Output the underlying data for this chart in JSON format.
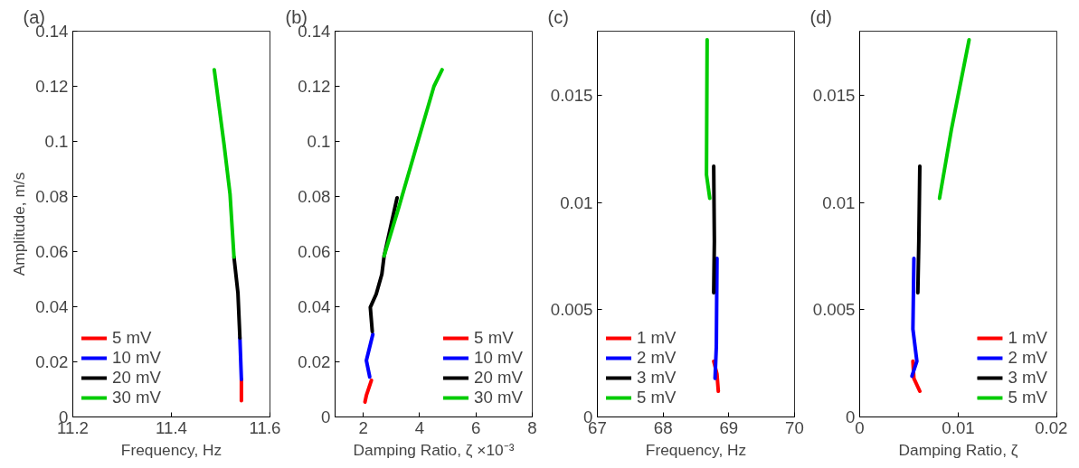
{
  "chart_data": [
    {
      "type": "line",
      "title": "(a)",
      "xlabel": "Frequency, Hz",
      "ylabel": "Amplitude, m/s",
      "xlim": [
        11.2,
        11.6
      ],
      "xticks": [
        11.2,
        11.4,
        11.6
      ],
      "ylim": [
        0,
        0.14
      ],
      "yticks": [
        0,
        0.02,
        0.04,
        0.06,
        0.08,
        0.1,
        0.12,
        0.14
      ],
      "legend": "bottom left",
      "grid": false,
      "series": [
        {
          "name": "5 mV",
          "color": "#ff0000",
          "x": [
            11.542,
            11.542
          ],
          "values": [
            0.0059,
            0.0136
          ]
        },
        {
          "name": "10 mV",
          "color": "#0000ff",
          "x": [
            11.542,
            11.539
          ],
          "values": [
            0.0136,
            0.0287
          ]
        },
        {
          "name": "20 mV",
          "color": "#000000",
          "x": [
            11.539,
            11.535,
            11.527
          ],
          "values": [
            0.0287,
            0.045,
            0.058
          ]
        },
        {
          "name": "30 mV",
          "color": "#00cc00",
          "x": [
            11.527,
            11.519,
            11.507,
            11.487
          ],
          "values": [
            0.058,
            0.0808,
            0.0987,
            0.126
          ]
        }
      ]
    },
    {
      "type": "line",
      "title": "(b)",
      "xlabel": "Damping Ratio, ζ ×10⁻³",
      "xlim": [
        1,
        8
      ],
      "xticks": [
        2,
        4,
        6,
        8
      ],
      "ylim": [
        0,
        0.14
      ],
      "yticks": [
        0,
        0.02,
        0.04,
        0.06,
        0.08,
        0.1,
        0.12,
        0.14
      ],
      "legend": "bottom right",
      "grid": false,
      "series": [
        {
          "name": "5 mV",
          "color": "#ff0000",
          "x": [
            2.06,
            2.11,
            2.29
          ],
          "values": [
            0.0054,
            0.0078,
            0.0133
          ]
        },
        {
          "name": "10 mV",
          "color": "#0000ff",
          "x": [
            2.23,
            2.11,
            2.34
          ],
          "values": [
            0.0145,
            0.0205,
            0.03
          ]
        },
        {
          "name": "20 mV",
          "color": "#000000",
          "x": [
            2.32,
            2.25,
            2.46,
            2.66,
            2.74,
            3.2
          ],
          "values": [
            0.031,
            0.0398,
            0.0446,
            0.0518,
            0.0584,
            0.0795
          ]
        },
        {
          "name": "30 mV",
          "color": "#00cc00",
          "x": [
            2.74,
            3.26,
            3.94,
            4.51,
            4.8
          ],
          "values": [
            0.0584,
            0.076,
            0.1,
            0.12,
            0.126
          ]
        }
      ]
    },
    {
      "type": "line",
      "title": "(c)",
      "xlabel": "Frequency, Hz",
      "xlim": [
        67,
        70
      ],
      "xticks": [
        67,
        68,
        69,
        70
      ],
      "ylim": [
        0,
        0.018
      ],
      "yticks": [
        0,
        0.005,
        0.01,
        0.015
      ],
      "legend": "bottom left",
      "grid": false,
      "series": [
        {
          "name": "1 mV",
          "color": "#ff0000",
          "x": [
            68.77,
            68.82,
            68.84
          ],
          "values": [
            0.0026,
            0.002,
            0.0012
          ]
        },
        {
          "name": "2 mV",
          "color": "#0000ff",
          "x": [
            68.79,
            68.81,
            68.82
          ],
          "values": [
            0.0018,
            0.0033,
            0.0074
          ]
        },
        {
          "name": "3 mV",
          "color": "#000000",
          "x": [
            68.77,
            68.78,
            68.77
          ],
          "values": [
            0.0058,
            0.0082,
            0.0117
          ]
        },
        {
          "name": "5 mV",
          "color": "#00cc00",
          "x": [
            68.71,
            68.66,
            68.67
          ],
          "values": [
            0.0102,
            0.0113,
            0.0176
          ]
        }
      ]
    },
    {
      "type": "line",
      "title": "(d)",
      "xlabel": "Damping Ratio, ζ",
      "xlim": [
        0,
        0.02
      ],
      "xticks": [
        0,
        0.01,
        0.02
      ],
      "ylim": [
        0,
        0.018
      ],
      "yticks": [
        0,
        0.005,
        0.01,
        0.015
      ],
      "legend": "bottom right",
      "grid": false,
      "series": [
        {
          "name": "1 mV",
          "color": "#ff0000",
          "x": [
            0.0054,
            0.0055,
            0.0061
          ],
          "values": [
            0.0026,
            0.0018,
            0.0012
          ]
        },
        {
          "name": "2 mV",
          "color": "#0000ff",
          "x": [
            0.0053,
            0.0058,
            0.0054,
            0.0055
          ],
          "values": [
            0.0019,
            0.0026,
            0.0041,
            0.0074
          ]
        },
        {
          "name": "3 mV",
          "color": "#000000",
          "x": [
            0.0059,
            0.006,
            0.0061
          ],
          "values": [
            0.0058,
            0.0082,
            0.0117
          ]
        },
        {
          "name": "5 mV",
          "color": "#00cc00",
          "x": [
            0.0081,
            0.0093,
            0.0111
          ],
          "values": [
            0.0102,
            0.0134,
            0.0176
          ]
        }
      ]
    }
  ]
}
